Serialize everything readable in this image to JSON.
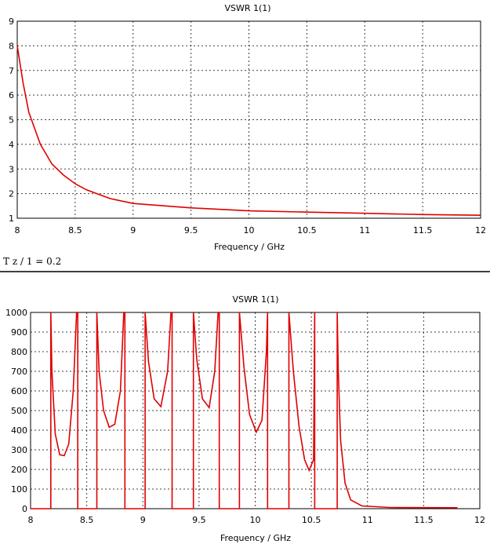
{
  "chart_data": [
    {
      "type": "line",
      "title": "VSWR 1(1)",
      "xlabel": "Frequency / GHz",
      "ylabel": "",
      "xlim": [
        8,
        12
      ],
      "ylim": [
        1,
        9
      ],
      "xticks": [
        "8",
        "8.5",
        "9",
        "9.5",
        "10",
        "10.5",
        "11",
        "11.5",
        "12"
      ],
      "yticks": [
        "1",
        "2",
        "3",
        "4",
        "5",
        "6",
        "7",
        "8",
        "9"
      ],
      "grid": true,
      "series_color": "#e00000",
      "series": [
        {
          "x": [
            8.0,
            8.05,
            8.1,
            8.2,
            8.3,
            8.4,
            8.5,
            8.6,
            8.8,
            9.0,
            9.5,
            10.0,
            10.5,
            11.0,
            11.5,
            12.0
          ],
          "y": [
            8.0,
            6.5,
            5.3,
            4.0,
            3.2,
            2.75,
            2.4,
            2.15,
            1.8,
            1.6,
            1.42,
            1.3,
            1.25,
            1.2,
            1.15,
            1.12
          ]
        }
      ]
    },
    {
      "type": "line",
      "title": "VSWR 1(1)",
      "xlabel": "Frequency / GHz",
      "ylabel": "",
      "xlim": [
        8,
        12
      ],
      "ylim": [
        0,
        1000
      ],
      "xticks": [
        "8",
        "8.5",
        "9",
        "9.5",
        "10",
        "10.5",
        "11",
        "11.5",
        "12"
      ],
      "yticks": [
        "0",
        "100",
        "200",
        "300",
        "400",
        "500",
        "600",
        "700",
        "800",
        "900",
        "1000"
      ],
      "grid": true,
      "series_color": "#e00000",
      "series": [
        {
          "x": [
            8.0,
            8.18,
            8.18,
            8.19,
            8.22,
            8.26,
            8.3,
            8.34,
            8.38,
            8.41,
            8.42,
            8.42,
            8.59,
            8.59,
            8.61,
            8.65,
            8.7,
            8.75,
            8.8,
            8.83,
            8.84,
            8.84,
            9.02,
            9.02,
            9.05,
            9.1,
            9.16,
            9.22,
            9.25,
            9.26,
            9.26,
            9.45,
            9.45,
            9.48,
            9.53,
            9.59,
            9.64,
            9.67,
            9.68,
            9.68,
            9.86,
            9.86,
            9.9,
            9.95,
            10.01,
            10.06,
            10.1,
            10.11,
            10.11,
            10.3,
            10.3,
            10.34,
            10.39,
            10.44,
            10.48,
            10.52,
            10.53,
            10.53,
            10.73,
            10.73,
            10.74,
            10.76,
            10.8,
            10.85,
            10.95,
            11.2,
            11.8
          ],
          "y": [
            0,
            0,
            1000,
            700,
            380,
            275,
            270,
            330,
            600,
            1000,
            1000,
            0,
            0,
            1000,
            700,
            500,
            415,
            430,
            600,
            1000,
            1000,
            0,
            0,
            1000,
            750,
            560,
            520,
            700,
            1000,
            1000,
            0,
            0,
            1000,
            760,
            560,
            515,
            700,
            1000,
            1000,
            0,
            0,
            1000,
            720,
            480,
            390,
            450,
            800,
            1000,
            0,
            0,
            1000,
            700,
            420,
            250,
            195,
            250,
            1000,
            0,
            0,
            1000,
            700,
            350,
            130,
            45,
            14,
            6,
            5
          ]
        }
      ]
    }
  ],
  "caption": "T   z / 1 = 0.2"
}
